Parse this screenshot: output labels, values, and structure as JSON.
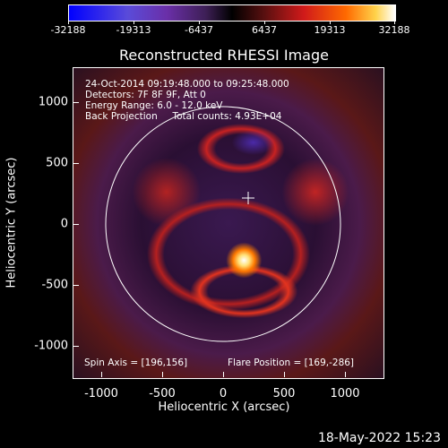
{
  "colorbar": {
    "labels": [
      "-32188",
      "-19313",
      "-6437",
      "6437",
      "19313",
      "32188"
    ]
  },
  "title": "Reconstructed RHESSI Image",
  "info_lines": [
    "24-Oct-2014 09:19:48.000 to 09:25:48.000",
    "Detectors: 7F 8F 9F, Att 0",
    "Energy Range: 6.0 - 12.0 keV",
    "Back Projection     Total counts: 4.93E+04"
  ],
  "spin_axis": "Spin Axis = [196,156]",
  "flare_position": "Flare Position = [169,-286]",
  "x_axis": {
    "title": "Heliocentric X (arcsec)",
    "ticks": [
      "-1000",
      "-500",
      "0",
      "500",
      "1000"
    ]
  },
  "y_axis": {
    "title": "Heliocentric Y (arcsec)",
    "ticks": [
      "1000",
      "500",
      "0",
      "-500",
      "-1000"
    ]
  },
  "timestamp": "18-May-2022 15:23",
  "colors": {
    "background": "#000000",
    "text": "#ffffff"
  }
}
